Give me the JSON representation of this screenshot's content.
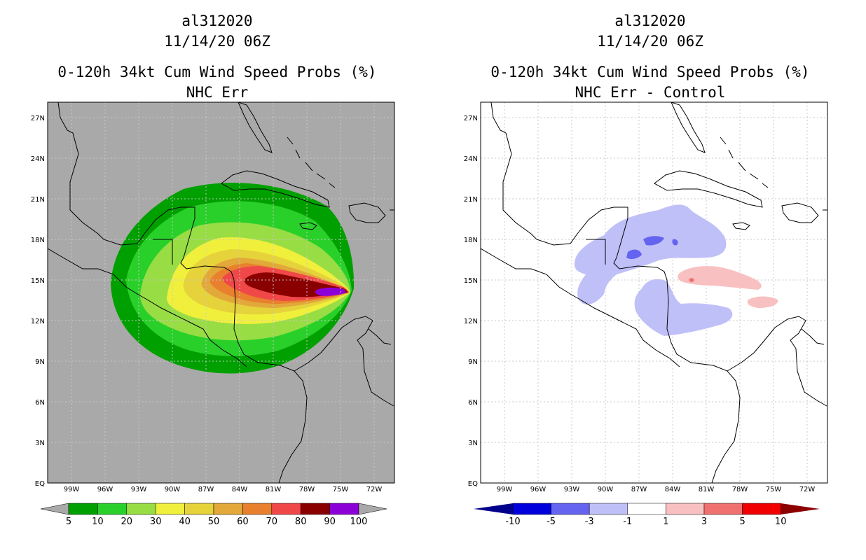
{
  "left_panel": {
    "storm_id": "al312020",
    "datetime": "11/14/20 06Z",
    "product": "0-120h 34kt Cum Wind Speed Probs (%)",
    "subtitle": "NHC Err",
    "background_color": "#a9a9a9",
    "colorbar": {
      "labels": [
        "5",
        "10",
        "20",
        "30",
        "40",
        "50",
        "60",
        "70",
        "80",
        "90",
        "100"
      ],
      "colors": [
        "#00a000",
        "#2ad02a",
        "#98dd44",
        "#f0f03c",
        "#e6d23a",
        "#e2a83a",
        "#e8802e",
        "#f04848",
        "#8a0000",
        "#8c00d8"
      ],
      "under_color": "#a9a9a9",
      "over_color": "#a9a9a9"
    }
  },
  "right_panel": {
    "storm_id": "al312020",
    "datetime": "11/14/20 06Z",
    "product": "0-120h 34kt Cum Wind Speed Probs (%)",
    "subtitle": "NHC Err - Control",
    "background_color": "#ffffff",
    "colorbar": {
      "labels": [
        "-10",
        "-5",
        "-3",
        "-1",
        "1",
        "3",
        "5",
        "10"
      ],
      "colors": [
        "#0000dd",
        "#6464f0",
        "#c0c0f8",
        "#ffffff",
        "#f8c0c0",
        "#f07070",
        "#f00000"
      ],
      "under_color": "#00008c",
      "over_color": "#8c0000"
    }
  },
  "map": {
    "lat_labels": [
      "27N",
      "24N",
      "21N",
      "18N",
      "15N",
      "12N",
      "9N",
      "6N",
      "3N",
      "EQ"
    ],
    "lon_labels": [
      "99W",
      "96W",
      "93W",
      "90W",
      "87W",
      "84W",
      "81W",
      "78W",
      "75W",
      "72W"
    ]
  }
}
